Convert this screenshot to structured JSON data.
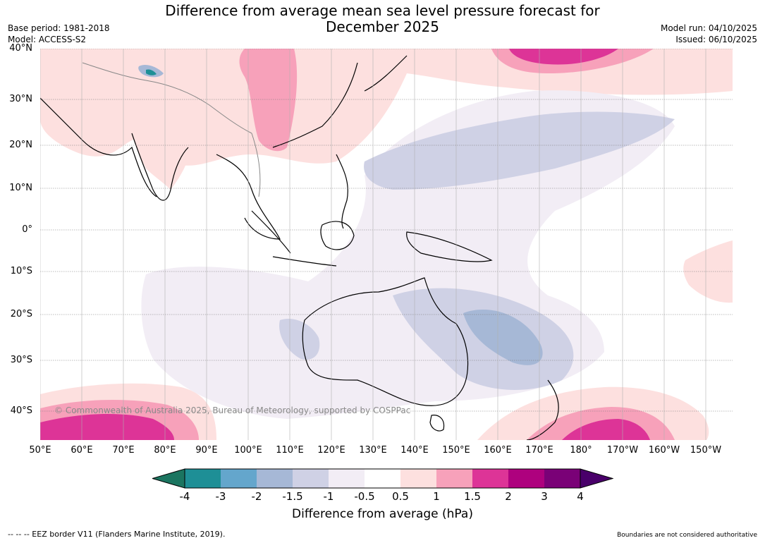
{
  "header": {
    "title_line1": "Difference from average mean sea level pressure forecast for",
    "title_line2": "December 2025",
    "base_period": "Base period: 1981-2018",
    "model": "Model: ACCESS-S2",
    "model_run": "Model run: 04/10/2025",
    "issued": "Issued: 06/10/2025"
  },
  "map": {
    "lat_labels": [
      "40°N",
      "30°N",
      "20°N",
      "10°N",
      "0°",
      "10°S",
      "20°S",
      "30°S",
      "40°S"
    ],
    "lon_labels": [
      "50°E",
      "60°E",
      "70°E",
      "80°E",
      "90°E",
      "100°E",
      "110°E",
      "120°E",
      "130°E",
      "140°E",
      "150°E",
      "160°E",
      "170°E",
      "180°",
      "170°W",
      "160°W",
      "150°W"
    ],
    "copyright": "© Commonwealth of Australia 2025, Bureau of Meteorology, supported by COSPPac"
  },
  "colorbar": {
    "labels": [
      "-4",
      "-3",
      "-2",
      "-1.5",
      "-1",
      "-0.5",
      "0.5",
      "1",
      "1.5",
      "2",
      "3",
      "4"
    ],
    "colors": [
      "#1b7560",
      "#1e8f96",
      "#64a6cc",
      "#a6b8d6",
      "#cfd1e5",
      "#f2edf5",
      "#ffffff",
      "#fde0df",
      "#f7a1ba",
      "#dd3497",
      "#ae017e",
      "#7a0177",
      "#49006a"
    ],
    "title": "Difference from average (hPa)"
  },
  "footer": {
    "eez_note": "--  --  -- EEZ border V11 (Flanders Marine Institute, 2019).",
    "boundaries_note": "Boundaries are not considered authoritative"
  }
}
